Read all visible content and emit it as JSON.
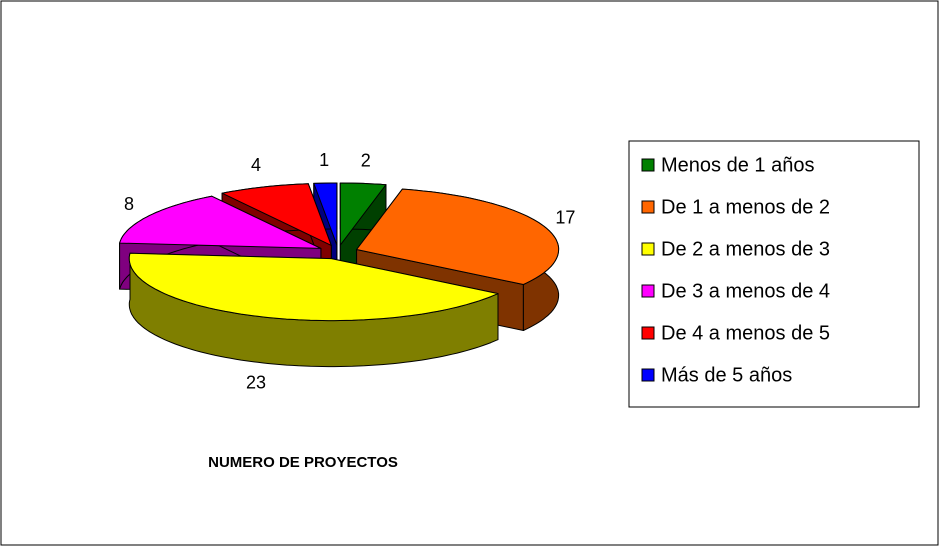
{
  "chart_data": {
    "type": "pie",
    "title": "NUMERO DE PROYECTOS",
    "categories": [
      "Menos de 1 años",
      "De 1 a menos de 2",
      "De 2 a menos de 3",
      "De 3 a menos de 4",
      "De 4 a menos de 5",
      "Más de 5 años"
    ],
    "values": [
      2,
      17,
      23,
      8,
      4,
      1
    ],
    "colors": [
      "#008000",
      "#ff6600",
      "#ffff00",
      "#ff00ff",
      "#ff0000",
      "#0000ff"
    ],
    "legend": "right"
  }
}
